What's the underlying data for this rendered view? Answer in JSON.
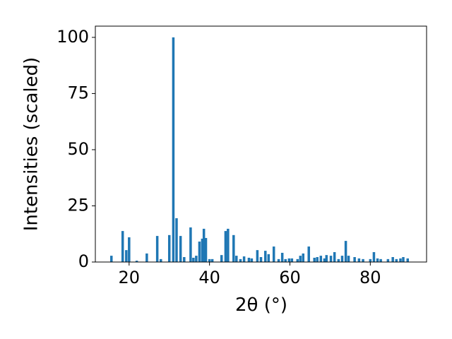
{
  "chart_data": {
    "type": "bar",
    "x_label": "2θ (°)",
    "y_label": "Intensities (scaled)",
    "color": "#1f77b4",
    "x": [
      15.6,
      18.4,
      19.3,
      20.0,
      21.9,
      24.4,
      27.0,
      27.9,
      30.0,
      31.0,
      31.8,
      32.8,
      33.7,
      35.3,
      36.0,
      36.7,
      37.5,
      38.2,
      38.6,
      39.1,
      40.0,
      40.7,
      43.0,
      44.0,
      44.6,
      46.0,
      46.7,
      47.7,
      48.6,
      49.8,
      50.5,
      51.9,
      52.8,
      53.9,
      54.7,
      56.0,
      57.2,
      58.1,
      58.9,
      59.8,
      60.5,
      61.9,
      62.6,
      63.3,
      64.7,
      66.1,
      66.8,
      67.7,
      68.6,
      69.1,
      70.2,
      71.1,
      72.1,
      73.0,
      73.9,
      74.6,
      76.1,
      77.2,
      78.2,
      80.0,
      80.9,
      81.8,
      82.6,
      84.4,
      85.6,
      86.5,
      87.5,
      88.2,
      89.3
    ],
    "values": [
      2.8,
      13.8,
      5.3,
      11.0,
      0.6,
      3.8,
      11.6,
      1.3,
      12.0,
      100,
      19.5,
      11.6,
      2.2,
      15.4,
      1.9,
      2.8,
      9.1,
      10.4,
      14.8,
      10.7,
      1.3,
      1.3,
      3.1,
      13.8,
      14.8,
      12.0,
      2.8,
      1.3,
      2.5,
      1.9,
      1.6,
      5.3,
      2.2,
      5.0,
      3.5,
      6.9,
      1.3,
      4.1,
      1.3,
      1.6,
      1.6,
      1.3,
      2.8,
      3.8,
      6.9,
      1.9,
      2.2,
      2.8,
      1.6,
      3.1,
      2.8,
      4.4,
      1.3,
      2.8,
      9.4,
      2.8,
      2.2,
      1.6,
      1.3,
      1.3,
      4.4,
      1.6,
      1.3,
      1.3,
      2.2,
      1.3,
      1.6,
      2.2,
      1.6
    ],
    "xlim": [
      11.6,
      94.0
    ],
    "ylim": [
      0,
      105
    ],
    "xticks": [
      20,
      40,
      60,
      80
    ],
    "yticks": [
      0,
      25,
      50,
      75,
      100
    ]
  }
}
